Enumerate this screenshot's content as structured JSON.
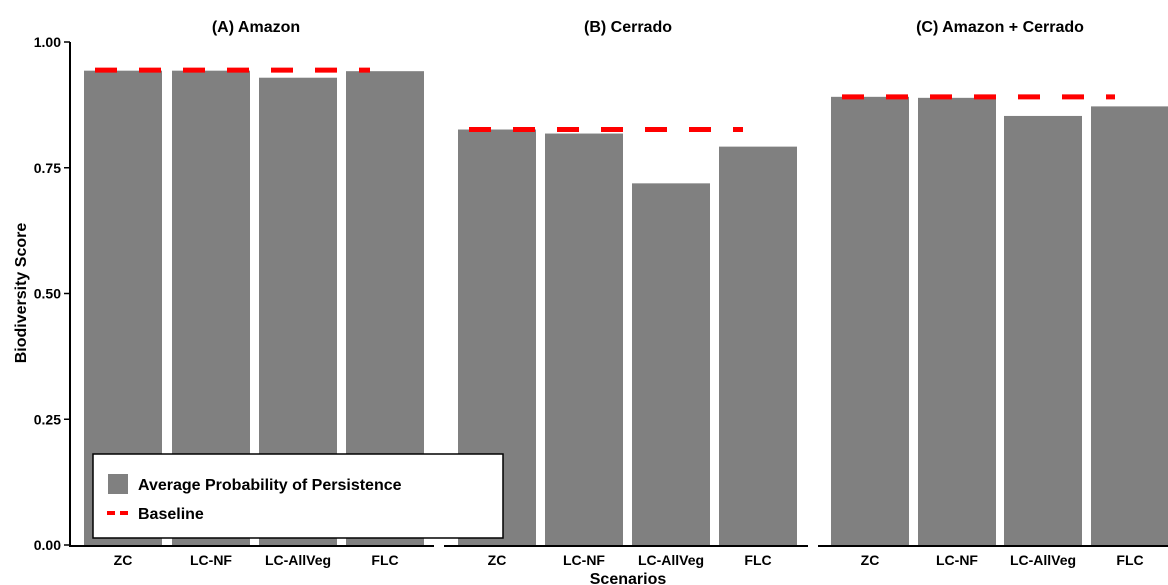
{
  "chart_data": {
    "type": "bar",
    "ylabel": "Biodiversity Score",
    "xlabel": "Scenarios",
    "ylim": [
      0,
      1
    ],
    "y_ticks": [
      "0.00",
      "0.25",
      "0.50",
      "0.75",
      "1.00"
    ],
    "grid": false,
    "legend": {
      "position": "bottom-left",
      "entries": [
        "Average Probability of Persistence",
        "Baseline"
      ]
    },
    "colors": {
      "bar": "#808080",
      "baseline": "#ff0000",
      "axis": "#000000"
    },
    "panels": [
      {
        "title": "(A) Amazon",
        "categories": [
          "ZC",
          "LC-NF",
          "LC-AllVeg",
          "FLC"
        ],
        "values": [
          0.943,
          0.943,
          0.929,
          0.942
        ],
        "baseline": 0.944
      },
      {
        "title": "(B) Cerrado",
        "categories": [
          "ZC",
          "LC-NF",
          "LC-AllVeg",
          "FLC"
        ],
        "values": [
          0.826,
          0.818,
          0.719,
          0.792
        ],
        "baseline": 0.826
      },
      {
        "title": "(C) Amazon + Cerrado",
        "categories": [
          "ZC",
          "LC-NF",
          "LC-AllVeg",
          "FLC"
        ],
        "values": [
          0.891,
          0.889,
          0.853,
          0.872
        ],
        "baseline": 0.891
      }
    ]
  }
}
